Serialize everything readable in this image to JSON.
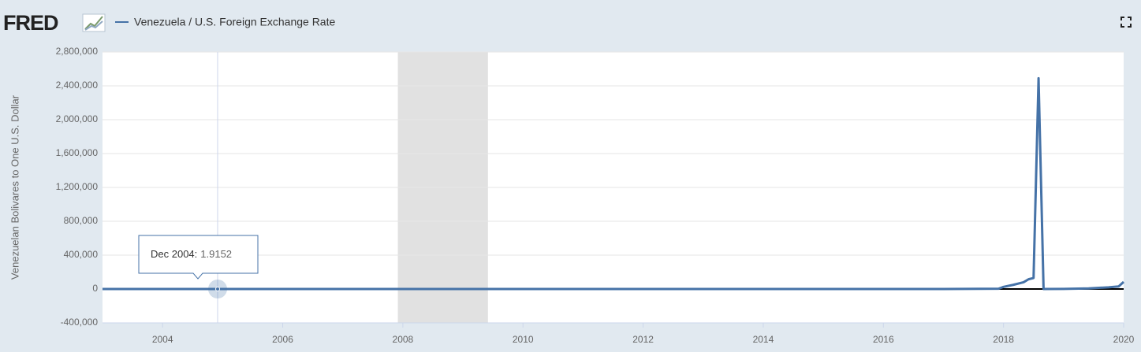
{
  "header": {
    "logo": "FRED"
  },
  "chart_data": {
    "type": "line",
    "title": "Venezuela / U.S. Foreign Exchange Rate",
    "y_label": "Venezuelan Bolivares to One U.S. Dollar",
    "x": [
      "2003-01",
      "2004-12",
      "2008-01",
      "2010-01",
      "2013-02",
      "2016-03",
      "2017-01",
      "2017-12",
      "2018-01",
      "2018-03",
      "2018-05",
      "2018-06",
      "2018-07",
      "2018-08",
      "2018-09",
      "2019-01",
      "2019-06",
      "2019-10",
      "2019-12",
      "2020-01"
    ],
    "series": [
      {
        "name": "Venezuela / U.S. Foreign Exchange Rate",
        "color": "#4572a7",
        "values": [
          1.4,
          1.9152,
          2.15,
          4.3,
          6.3,
          10,
          10,
          3345,
          25000,
          50000,
          80000,
          115000,
          130000,
          2490000,
          60,
          700,
          7000,
          20000,
          30000,
          84000
        ]
      }
    ],
    "xlim": [
      "2003-01",
      "2020-01"
    ],
    "xticks": [
      2004,
      2006,
      2008,
      2010,
      2012,
      2014,
      2016,
      2018,
      2020
    ],
    "ylim": [
      -400000,
      2800000
    ],
    "yticks": [
      {
        "value": -400000,
        "label": "-400,000"
      },
      0,
      {
        "value": 400000,
        "label": "400,000"
      },
      {
        "value": 800000,
        "label": "800,000"
      },
      {
        "value": 1200000,
        "label": "1,200,000"
      },
      {
        "value": 1600000,
        "label": "1,600,000"
      },
      {
        "value": 2000000,
        "label": "2,000,000"
      },
      {
        "value": 2400000,
        "label": "2,400,000"
      },
      {
        "value": 2800000,
        "label": "2,800,000"
      }
    ],
    "grid": true,
    "recessions": [
      {
        "start": "2007-12",
        "end": "2009-06"
      }
    ],
    "tooltip": {
      "label": "Dec 2004:",
      "index": 1
    }
  }
}
